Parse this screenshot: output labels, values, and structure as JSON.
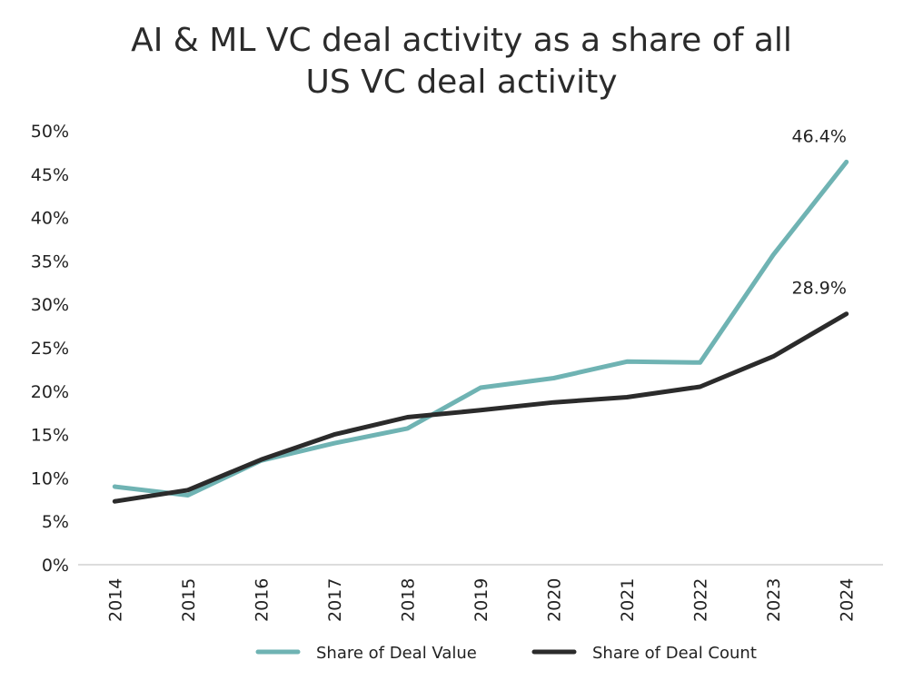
{
  "chart_data": {
    "type": "line",
    "title_line1": "AI & ML VC deal activity as a share of all",
    "title_line2": "US VC deal activity",
    "categories": [
      "2014",
      "2015",
      "2016",
      "2017",
      "2018",
      "2019",
      "2020",
      "2021",
      "2022",
      "2023",
      "2024"
    ],
    "y_ticks": [
      "0%",
      "5%",
      "10%",
      "15%",
      "20%",
      "25%",
      "30%",
      "35%",
      "40%",
      "45%",
      "50%"
    ],
    "ylim": [
      0,
      50
    ],
    "y_unit": "%",
    "grid": false,
    "legend_position": "bottom",
    "series": [
      {
        "name": "Share of Deal Value",
        "color": "#6fb3b3",
        "values": [
          9.0,
          8.0,
          12.0,
          14.0,
          15.7,
          20.4,
          21.5,
          23.4,
          23.3,
          35.7,
          46.4
        ],
        "end_label": "46.4%"
      },
      {
        "name": "Share of Deal Count",
        "color": "#2b2b2b",
        "values": [
          7.3,
          8.6,
          12.1,
          15.0,
          17.0,
          17.8,
          18.7,
          19.3,
          20.5,
          24.0,
          28.9
        ],
        "end_label": "28.9%"
      }
    ]
  }
}
